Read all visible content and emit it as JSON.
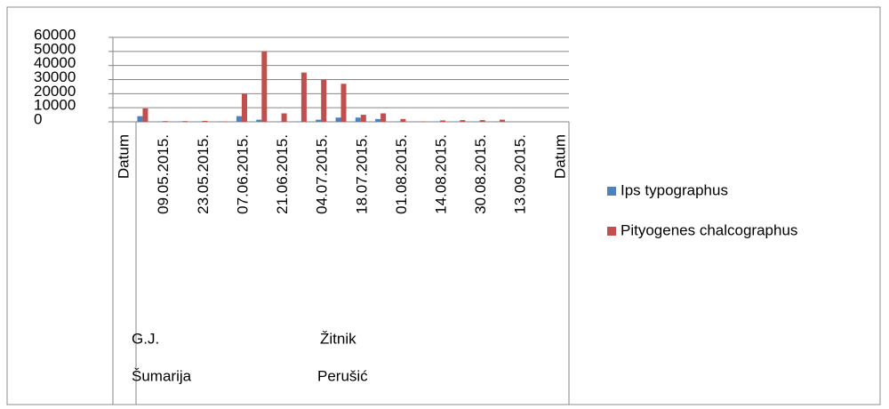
{
  "chart_data": {
    "type": "bar",
    "categories": [
      "Datum",
      null,
      "09.05.2015.",
      null,
      "23.05.2015.",
      null,
      "07.06.2015.",
      null,
      "21.06.2015.",
      null,
      "04.07.2015.",
      null,
      "18.07.2015.",
      null,
      "01.08.2015.",
      null,
      "14.08.2015.",
      null,
      "30.08.2015.",
      null,
      "13.09.2015.",
      null,
      "Datum"
    ],
    "category_groups": {
      "level1": [
        "G.J.",
        "Žitnik"
      ],
      "level2": [
        "Šumarija",
        "Perušić"
      ]
    },
    "series": [
      {
        "name": "Ips typographus",
        "color": "#4f81bd",
        "values": [
          null,
          4000,
          300,
          300,
          200,
          300,
          4000,
          1500,
          300,
          300,
          1500,
          3000,
          3000,
          2000,
          300,
          200,
          300,
          200,
          300,
          200,
          0,
          0,
          null
        ]
      },
      {
        "name": "Pityogenes chalcographus",
        "color": "#c0504d",
        "values": [
          null,
          9500,
          500,
          500,
          700,
          300,
          20000,
          50000,
          6000,
          35000,
          30000,
          27000,
          5000,
          6000,
          2000,
          300,
          1000,
          1200,
          1200,
          1500,
          0,
          0,
          null
        ]
      }
    ],
    "ylim": [
      0,
      60000
    ],
    "yticks": [
      0,
      10000,
      20000,
      30000,
      40000,
      50000,
      60000
    ],
    "grid": true,
    "legend": "right"
  }
}
